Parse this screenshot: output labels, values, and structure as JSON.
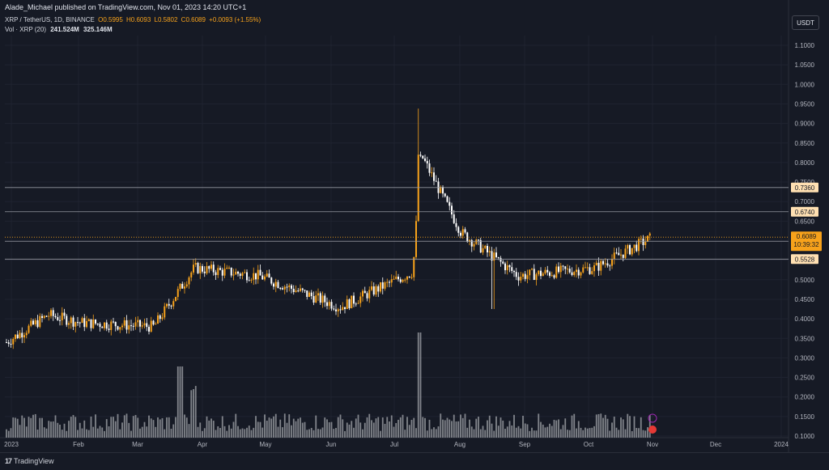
{
  "header": {
    "publisher_line": "Alade_Michael published on TradingView.com, Nov 01, 2023 14:20 UTC+1"
  },
  "symbol": {
    "name": "XRP / TetherUS, 1D, BINANCE",
    "open": "O0.5995",
    "high": "H0.6093",
    "low": "L0.5802",
    "close": "C0.6089",
    "change": "+0.0093 (+1.55%)"
  },
  "volume_indicator": {
    "label": "Vol · XRP (20)",
    "value": "241.524M",
    "ma_value": "325.146M"
  },
  "currency_button": "USDT",
  "footer": {
    "logo_text": "TradingView",
    "logo_mark": "17"
  },
  "colors": {
    "background": "#161a25",
    "up_candle": "#f7a21b",
    "down_candle": "#ffffff",
    "grid": "#1f2330",
    "axis_text": "#b2b5be",
    "volume_bar": "#a6a8ad",
    "current_price_tag": "#f7a21b"
  },
  "chart_data": {
    "type": "candlestick",
    "title": "XRP / TetherUS, 1D, BINANCE",
    "y_axis": {
      "ticks": [
        "1.1000",
        "1.0500",
        "1.0000",
        "0.9500",
        "0.9000",
        "0.8500",
        "0.8000",
        "0.7500",
        "0.7000",
        "0.6500",
        "0.6000",
        "0.5500",
        "0.5000",
        "0.4500",
        "0.4000",
        "0.3500",
        "0.3000",
        "0.2500",
        "0.2000",
        "0.1500",
        "0.1000"
      ],
      "range": [
        0.1,
        1.1
      ]
    },
    "x_axis": {
      "ticks": [
        "2023",
        "Feb",
        "Mar",
        "Apr",
        "May",
        "Jun",
        "Jul",
        "Aug",
        "Sep",
        "Oct",
        "Nov",
        "Dec",
        "2024"
      ]
    },
    "horizontal_levels": [
      {
        "value": 0.736,
        "label": "0.7360",
        "style": "solid"
      },
      {
        "value": 0.674,
        "label": "0.6740",
        "style": "solid"
      },
      {
        "value": 0.5985,
        "label": "0.5985",
        "style": "solid"
      },
      {
        "value": 0.5528,
        "label": "0.5528",
        "style": "solid"
      }
    ],
    "current_price": {
      "value": 0.6089,
      "label": "0.6089",
      "countdown": "10:39:32"
    },
    "price_path_monthly": [
      {
        "month": "Jan",
        "close": 0.34
      },
      {
        "month": "Jan-end",
        "close": 0.41
      },
      {
        "month": "Feb",
        "close": 0.39
      },
      {
        "month": "Mar",
        "close": 0.38
      },
      {
        "month": "Mar-end",
        "close": 0.53
      },
      {
        "month": "Apr",
        "close": 0.51
      },
      {
        "month": "May",
        "close": 0.43
      },
      {
        "month": "Jun",
        "close": 0.52
      },
      {
        "month": "Jul-13",
        "close": 0.82
      },
      {
        "month": "Aug",
        "close": 0.62
      },
      {
        "month": "Sep",
        "close": 0.51
      },
      {
        "month": "Oct",
        "close": 0.53
      },
      {
        "month": "Nov",
        "close": 0.6089
      }
    ],
    "volume_scale_note": "volume pane shown at bottom"
  }
}
